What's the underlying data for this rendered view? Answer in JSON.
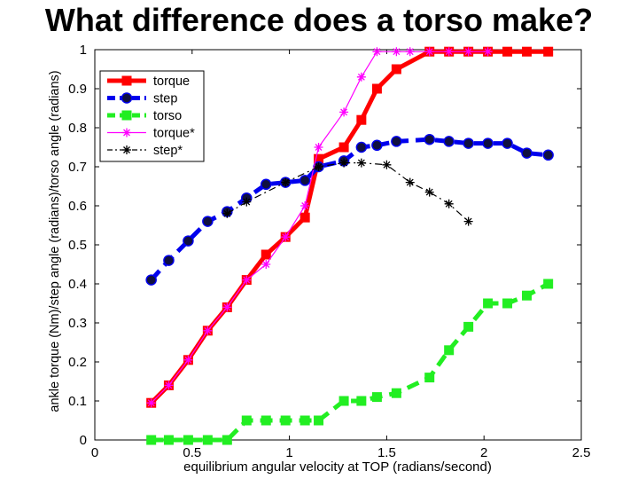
{
  "slide": {
    "title": "What difference does a torso make?"
  },
  "chart_data": {
    "type": "line",
    "title": "",
    "xlabel": "equilibrium angular velocity at TOP (radians/second)",
    "ylabel": "ankle torque (Nm)/step angle (radians)/torso angle (radians)",
    "xlim": [
      0,
      2.5
    ],
    "ylim": [
      0,
      1
    ],
    "x_ticks": [
      0,
      0.5,
      1,
      1.5,
      2,
      2.5
    ],
    "x_tick_labels": [
      "0",
      "0.5",
      "1",
      "1.5",
      "2",
      "2.5"
    ],
    "y_ticks": [
      0,
      0.1,
      0.2,
      0.3,
      0.4,
      0.5,
      0.6,
      0.7,
      0.8,
      0.9,
      1
    ],
    "y_tick_labels": [
      "0",
      "0.1",
      "0.2",
      "0.3",
      "0.4",
      "0.5",
      "0.6",
      "0.7",
      "0.8",
      "0.9",
      "1"
    ],
    "grid": false,
    "legend_position": "top-left",
    "series": [
      {
        "name": "torque",
        "color": "#ff0000",
        "style": "solid-thick",
        "marker": "square",
        "x": [
          0.29,
          0.38,
          0.48,
          0.58,
          0.68,
          0.78,
          0.88,
          0.98,
          1.08,
          1.15,
          1.28,
          1.37,
          1.45,
          1.55,
          1.72,
          1.82,
          1.92,
          2.02,
          2.12,
          2.22,
          2.33
        ],
        "y": [
          0.095,
          0.14,
          0.205,
          0.28,
          0.34,
          0.41,
          0.475,
          0.52,
          0.57,
          0.72,
          0.75,
          0.82,
          0.9,
          0.95,
          0.995,
          0.995,
          0.995,
          0.995,
          0.995,
          0.995,
          0.995
        ]
      },
      {
        "name": "step",
        "color": "#0000ee",
        "style": "dashed-thick",
        "marker": "circle",
        "x": [
          0.29,
          0.38,
          0.48,
          0.58,
          0.68,
          0.78,
          0.88,
          0.98,
          1.08,
          1.15,
          1.28,
          1.37,
          1.45,
          1.55,
          1.72,
          1.82,
          1.92,
          2.02,
          2.12,
          2.22,
          2.33
        ],
        "y": [
          0.41,
          0.46,
          0.51,
          0.56,
          0.585,
          0.62,
          0.655,
          0.66,
          0.665,
          0.7,
          0.715,
          0.75,
          0.755,
          0.765,
          0.77,
          0.765,
          0.76,
          0.76,
          0.76,
          0.735,
          0.73
        ]
      },
      {
        "name": "torso",
        "color": "#22ee22",
        "style": "dashed-thick",
        "marker": "square",
        "x": [
          0.29,
          0.38,
          0.48,
          0.58,
          0.68,
          0.78,
          0.88,
          0.98,
          1.08,
          1.15,
          1.28,
          1.37,
          1.45,
          1.55,
          1.72,
          1.82,
          1.92,
          2.02,
          2.12,
          2.22,
          2.33
        ],
        "y": [
          0,
          0,
          0,
          0,
          0,
          0.05,
          0.05,
          0.05,
          0.05,
          0.05,
          0.1,
          0.1,
          0.11,
          0.12,
          0.16,
          0.23,
          0.29,
          0.35,
          0.35,
          0.37,
          0.4
        ]
      },
      {
        "name": "torque*",
        "color": "#ff00ff",
        "style": "solid-thin",
        "marker": "star",
        "x": [
          0.29,
          0.38,
          0.48,
          0.58,
          0.68,
          0.78,
          0.88,
          0.98,
          1.08,
          1.15,
          1.28,
          1.37,
          1.45,
          1.55,
          1.62,
          1.72,
          1.82,
          1.92,
          2.02
        ],
        "y": [
          0.095,
          0.14,
          0.205,
          0.28,
          0.34,
          0.41,
          0.45,
          0.52,
          0.6,
          0.75,
          0.84,
          0.93,
          0.995,
          0.995,
          0.995,
          0.995,
          0.995,
          0.995,
          0.995
        ]
      },
      {
        "name": "step*",
        "color": "#000000",
        "style": "dashdot-thin",
        "marker": "star",
        "x": [
          0.68,
          0.78,
          0.98,
          1.15,
          1.28,
          1.37,
          1.5,
          1.62,
          1.72,
          1.82,
          1.92
        ],
        "y": [
          0.58,
          0.61,
          0.66,
          0.7,
          0.71,
          0.71,
          0.705,
          0.66,
          0.635,
          0.605,
          0.56
        ]
      }
    ]
  }
}
